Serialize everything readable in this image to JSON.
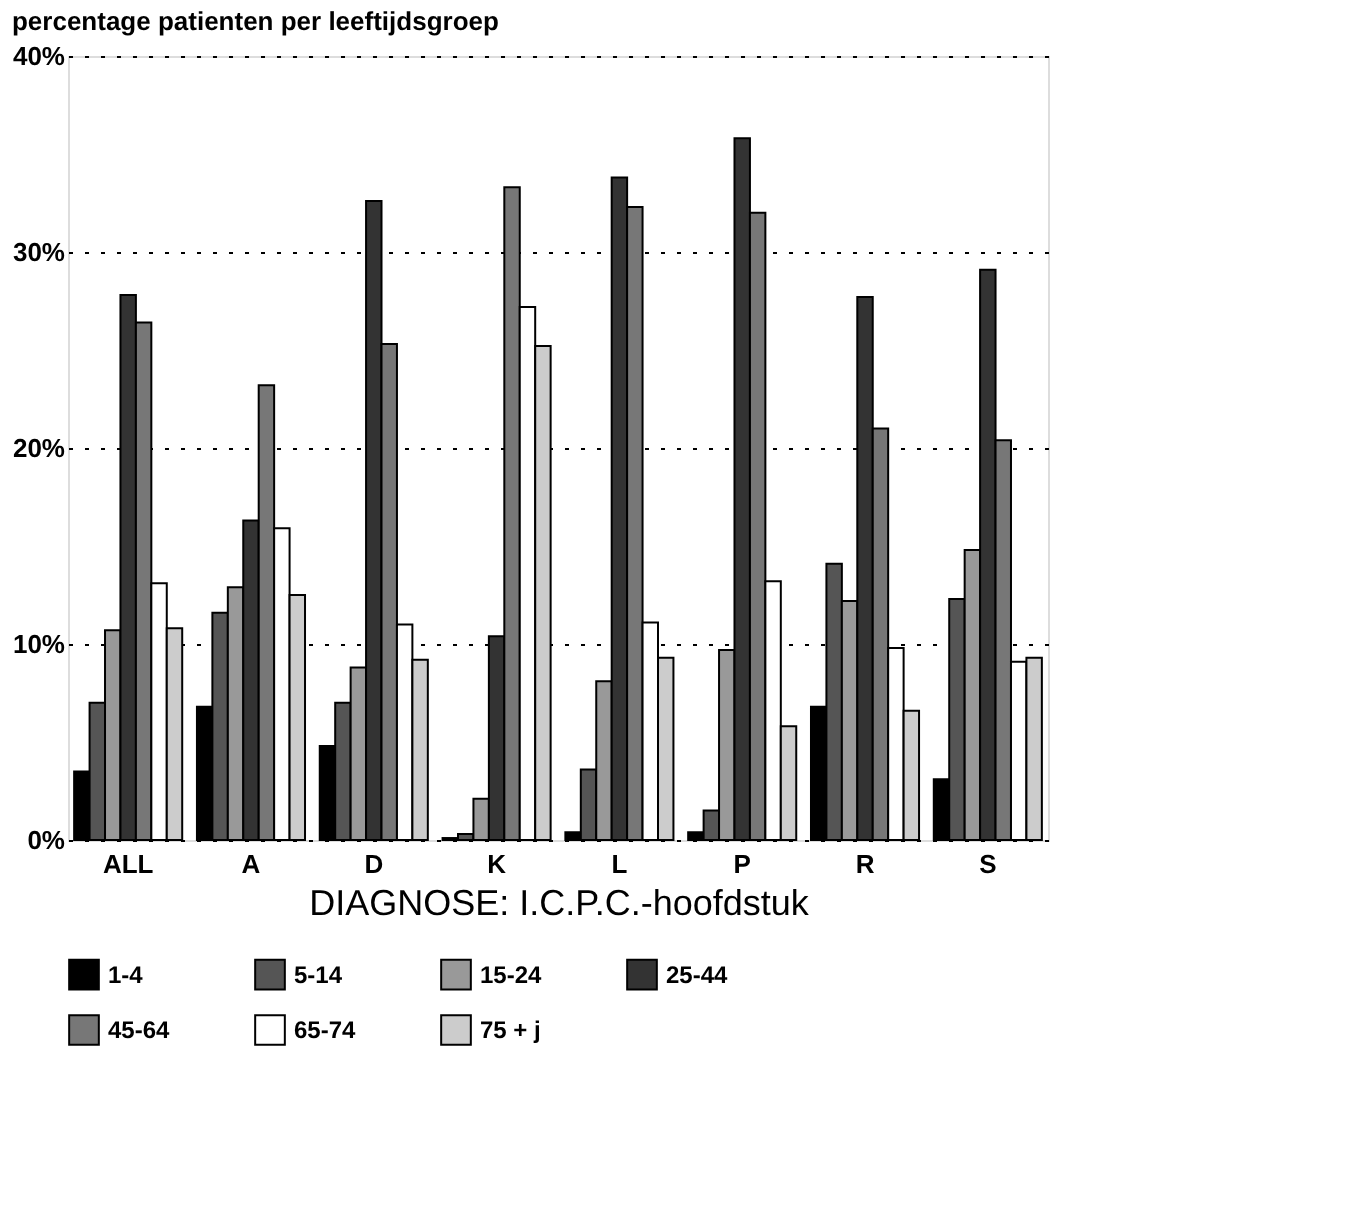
{
  "chart_data": {
    "type": "bar",
    "title": "percentage patienten per leeftijdsgroep",
    "xlabel": "DIAGNOSE: I.C.P.C.-hoofdstuk",
    "categories": [
      "ALL",
      "A",
      "D",
      "K",
      "L",
      "P",
      "R",
      "S"
    ],
    "series": [
      {
        "name": "1-4",
        "color": "#000000",
        "values": [
          3.5,
          6.8,
          4.8,
          0.1,
          0.4,
          0.4,
          6.8,
          3.1
        ]
      },
      {
        "name": "5-14",
        "color": "#555555",
        "values": [
          7.0,
          11.6,
          7.0,
          0.3,
          3.6,
          1.5,
          14.1,
          12.3
        ]
      },
      {
        "name": "15-24",
        "color": "#999999",
        "values": [
          10.7,
          12.9,
          8.8,
          2.1,
          8.1,
          9.7,
          12.2,
          14.8
        ]
      },
      {
        "name": "25-44",
        "color": "#333333",
        "values": [
          27.8,
          16.3,
          32.6,
          10.4,
          33.8,
          35.8,
          27.7,
          29.1
        ]
      },
      {
        "name": "45-64",
        "color": "#777777",
        "values": [
          26.4,
          23.2,
          25.3,
          33.3,
          32.3,
          32.0,
          21.0,
          20.4
        ]
      },
      {
        "name": "65-74",
        "color": "#ffffff",
        "values": [
          13.1,
          15.9,
          11.0,
          27.2,
          11.1,
          13.2,
          9.8,
          9.1
        ]
      },
      {
        "name": "75 + j",
        "color": "#cccccc",
        "values": [
          10.8,
          12.5,
          9.2,
          25.2,
          9.3,
          5.8,
          6.6,
          9.3
        ]
      }
    ],
    "ylim": [
      0,
      40
    ],
    "yticks": [
      {
        "value": 0,
        "label": "0%"
      },
      {
        "value": 10,
        "label": "10%"
      },
      {
        "value": 20,
        "label": "20%"
      },
      {
        "value": 30,
        "label": "30%"
      },
      {
        "value": 40,
        "label": "40%"
      }
    ],
    "grid": "y",
    "legend": "bottom"
  }
}
